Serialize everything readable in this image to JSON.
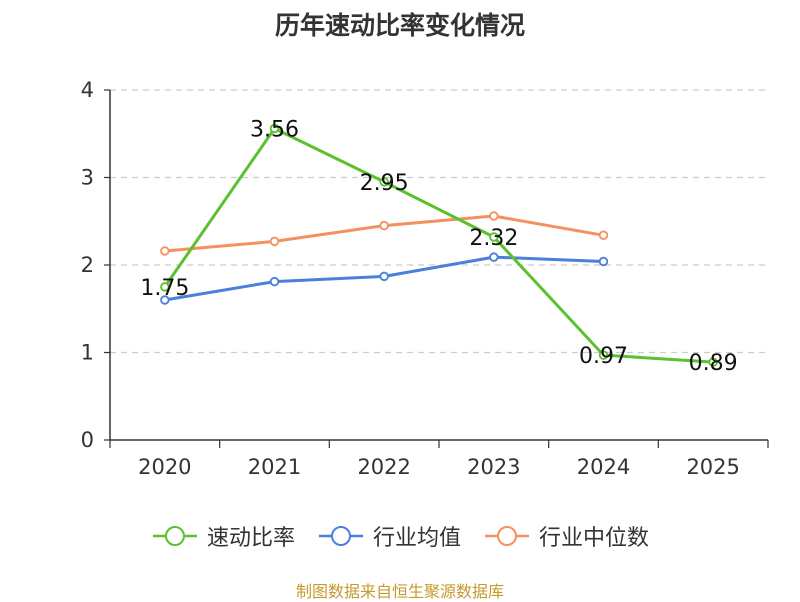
{
  "chart_data": {
    "type": "line",
    "title": "历年速动比率变化情况",
    "categories": [
      "2020",
      "2021",
      "2022",
      "2023",
      "2024",
      "2025"
    ],
    "ylim": [
      0,
      4
    ],
    "yticks": [
      "0",
      "1",
      "2",
      "3",
      "4"
    ],
    "grid": true,
    "legend_position": "bottom",
    "series": [
      {
        "name": "速动比率",
        "color": "#5cc12e",
        "values": [
          1.75,
          3.56,
          2.95,
          2.32,
          0.97,
          0.89
        ],
        "labels": [
          "1.75",
          "3.56",
          "2.95",
          "2.32",
          "0.97",
          "0.89"
        ]
      },
      {
        "name": "行业均值",
        "color": "#4a7fdb",
        "values": [
          1.6,
          1.81,
          1.87,
          2.09,
          2.04,
          null
        ]
      },
      {
        "name": "行业中位数",
        "color": "#f59060",
        "values": [
          2.16,
          2.27,
          2.45,
          2.56,
          2.34,
          null
        ]
      }
    ]
  },
  "source_note": "制图数据来自恒生聚源数据库"
}
